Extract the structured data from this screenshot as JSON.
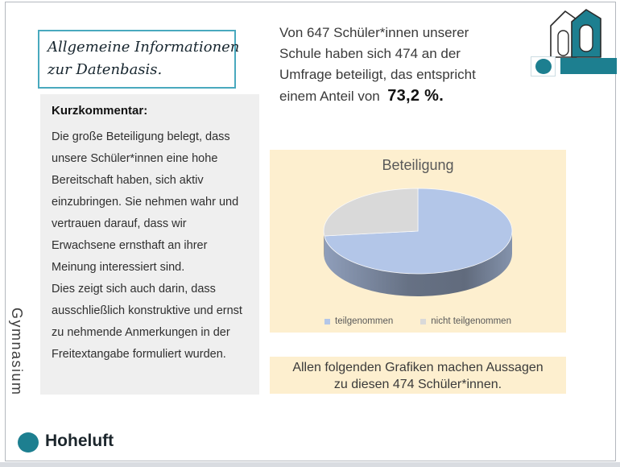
{
  "slide_title_box": {
    "lines": [
      "Allgemeine Informationen",
      "zur Datenbasis."
    ]
  },
  "intro": {
    "lines": [
      "Von 647 Schüler*innen unserer",
      "Schule haben sich 474 an der",
      "Umfrage beteiligt, das entspricht",
      "einem Anteil von"
    ],
    "highlight": "73,2 %."
  },
  "comment": {
    "heading": "Kurzkommentar:",
    "paragraphs": [
      "Die große Beteiligung belegt, dass unsere Schüler*innen eine hohe Bereitschaft haben, sich aktiv einzubringen. Sie nehmen wahr und vertrauen darauf, dass wir Erwachsene ernsthaft an ihrer Meinung interessiert sind.",
      "Dies zeigt sich auch darin, dass ausschließlich konstruktive und ernst zu nehmende Anmerkungen in der Freitextangabe formuliert wurden."
    ]
  },
  "chart_data": {
    "type": "pie",
    "style": "3d",
    "title": "Beteiligung",
    "labels": [
      "teilgenommen",
      "nicht teilgenommen"
    ],
    "values": [
      73.2,
      26.8
    ],
    "colors": [
      "#b3c6e8",
      "#d9d9d9"
    ],
    "background": "#fdefcf",
    "legend_position": "bottom"
  },
  "note": {
    "lines": [
      "Allen folgenden Grafiken machen Aussagen",
      "zu diesen 474 Schüler*innen."
    ]
  },
  "branding": {
    "school_vertical": "Gymnasium",
    "school_name": "Hoheluft",
    "accent_color": "#1d7f90"
  }
}
